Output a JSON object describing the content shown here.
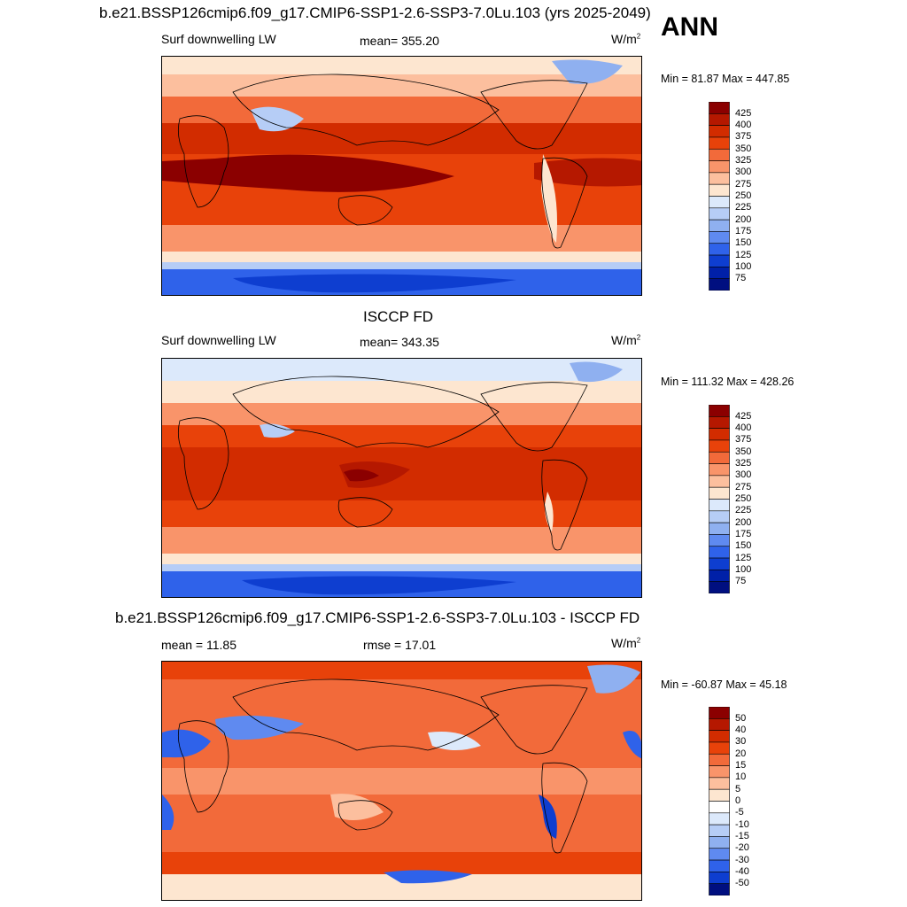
{
  "header": {
    "title": "b.e21.BSSP126cmip6.f09_g17.CMIP6-SSP1-2.6-SSP3-7.0Lu.103 (yrs 2025-2049)",
    "season": "ANN"
  },
  "chart_data": [
    {
      "type": "heatmap",
      "variable": "Surf downwelling LW",
      "stat_label": "mean=",
      "stat_value": "355.20",
      "units_base": "W/m",
      "units_exp": "2",
      "min_label": "Min =",
      "min_value": "81.87",
      "max_label": "Max =",
      "max_value": "447.85",
      "colorbar_levels": [
        "425",
        "400",
        "375",
        "350",
        "325",
        "300",
        "275",
        "250",
        "225",
        "200",
        "175",
        "150",
        "125",
        "100",
        "75"
      ],
      "colorbar_colors": [
        "#8b0000",
        "#b51800",
        "#d22c00",
        "#e8420a",
        "#f26a3a",
        "#f9946a",
        "#fcbf9e",
        "#fde6d0",
        "#dce9fb",
        "#b6cdf6",
        "#8fb0f0",
        "#5f8af0",
        "#2f62ea",
        "#0e3ed0",
        "#0020a8",
        "#000f80"
      ]
    },
    {
      "type": "heatmap",
      "title": "ISCCP FD",
      "variable": "Surf downwelling LW",
      "stat_label": "mean=",
      "stat_value": "343.35",
      "units_base": "W/m",
      "units_exp": "2",
      "min_label": "Min =",
      "min_value": "111.32",
      "max_label": "Max =",
      "max_value": "428.26",
      "colorbar_levels": [
        "425",
        "400",
        "375",
        "350",
        "325",
        "300",
        "275",
        "250",
        "225",
        "200",
        "175",
        "150",
        "125",
        "100",
        "75"
      ],
      "colorbar_colors": [
        "#8b0000",
        "#b51800",
        "#d22c00",
        "#e8420a",
        "#f26a3a",
        "#f9946a",
        "#fcbf9e",
        "#fde6d0",
        "#dce9fb",
        "#b6cdf6",
        "#8fb0f0",
        "#5f8af0",
        "#2f62ea",
        "#0e3ed0",
        "#0020a8",
        "#000f80"
      ]
    },
    {
      "type": "heatmap",
      "title": "b.e21.BSSP126cmip6.f09_g17.CMIP6-SSP1-2.6-SSP3-7.0Lu.103 - ISCCP FD",
      "stat_label": "mean =",
      "stat_value": "11.85",
      "rmse_label": "rmse =",
      "rmse_value": "17.01",
      "units_base": "W/m",
      "units_exp": "2",
      "min_label": "Min =",
      "min_value": "-60.87",
      "max_label": "Max =",
      "max_value": "45.18",
      "colorbar_levels": [
        "50",
        "40",
        "30",
        "20",
        "15",
        "10",
        "5",
        "0",
        "-5",
        "-10",
        "-15",
        "-20",
        "-30",
        "-40",
        "-50"
      ],
      "colorbar_colors": [
        "#8b0000",
        "#b51800",
        "#d22c00",
        "#e8420a",
        "#f26a3a",
        "#f9946a",
        "#fcbf9e",
        "#fde6d0",
        "#ffffff",
        "#dce9fb",
        "#b6cdf6",
        "#8fb0f0",
        "#5f8af0",
        "#2f62ea",
        "#0e3ed0",
        "#000f80"
      ]
    }
  ]
}
